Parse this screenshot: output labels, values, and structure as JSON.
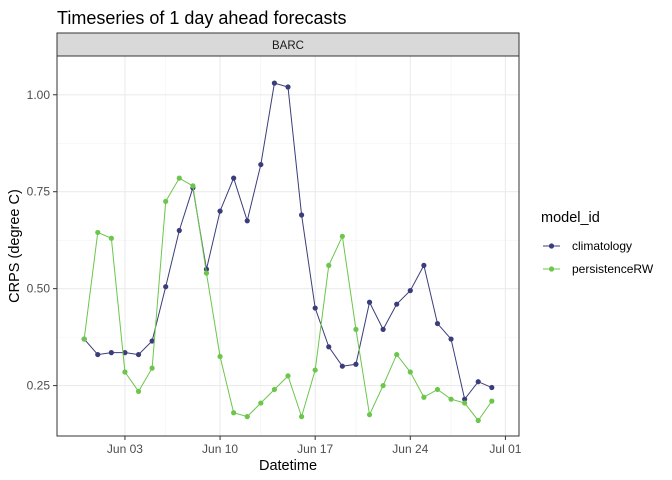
{
  "chart_data": {
    "type": "line",
    "title": "Timeseries of 1 day ahead forecasts",
    "facet": "BARC",
    "xlabel": "Datetime",
    "ylabel": "CRPS (degree C)",
    "x_ticks": [
      {
        "date": "2023-06-03",
        "label": "Jun 03"
      },
      {
        "date": "2023-06-10",
        "label": "Jun 10"
      },
      {
        "date": "2023-06-17",
        "label": "Jun 17"
      },
      {
        "date": "2023-06-24",
        "label": "Jun 24"
      },
      {
        "date": "2023-07-01",
        "label": "Jul 01"
      }
    ],
    "xlim": [
      "2023-05-29",
      "2023-07-02"
    ],
    "y_ticks": [
      0.25,
      0.5,
      0.75,
      1.0
    ],
    "y_tick_labels": [
      "0.25",
      "0.50",
      "0.75",
      "1.00"
    ],
    "ylim": [
      0.12,
      1.1
    ],
    "grid": true,
    "legend": {
      "title": "model_id",
      "position": "right"
    },
    "x": [
      "2023-05-31",
      "2023-06-01",
      "2023-06-02",
      "2023-06-03",
      "2023-06-04",
      "2023-06-05",
      "2023-06-06",
      "2023-06-07",
      "2023-06-08",
      "2023-06-09",
      "2023-06-10",
      "2023-06-11",
      "2023-06-12",
      "2023-06-13",
      "2023-06-14",
      "2023-06-15",
      "2023-06-16",
      "2023-06-17",
      "2023-06-18",
      "2023-06-19",
      "2023-06-20",
      "2023-06-21",
      "2023-06-22",
      "2023-06-23",
      "2023-06-24",
      "2023-06-25",
      "2023-06-26",
      "2023-06-27",
      "2023-06-28",
      "2023-06-29",
      "2023-06-30",
      "2023-07-01"
    ],
    "series": [
      {
        "name": "climatology",
        "color": "#3b3d7a",
        "values": [
          0.37,
          0.33,
          0.335,
          0.335,
          0.33,
          0.365,
          0.505,
          0.65,
          0.76,
          0.55,
          0.7,
          0.785,
          0.675,
          0.82,
          1.03,
          1.02,
          0.69,
          0.45,
          0.35,
          0.3,
          0.305,
          0.465,
          0.395,
          0.46,
          0.495,
          0.56,
          0.41,
          0.37,
          0.215,
          0.26,
          0.245,
          null
        ]
      },
      {
        "name": "persistenceRW",
        "color": "#6cc64c",
        "values": [
          0.37,
          0.645,
          0.63,
          0.285,
          0.235,
          0.295,
          0.725,
          0.785,
          0.765,
          0.54,
          0.325,
          0.18,
          0.17,
          0.205,
          0.24,
          0.275,
          0.17,
          0.29,
          0.56,
          0.635,
          0.395,
          0.175,
          0.25,
          0.33,
          0.285,
          0.22,
          0.24,
          0.215,
          0.205,
          0.16,
          0.21,
          null
        ]
      }
    ]
  }
}
